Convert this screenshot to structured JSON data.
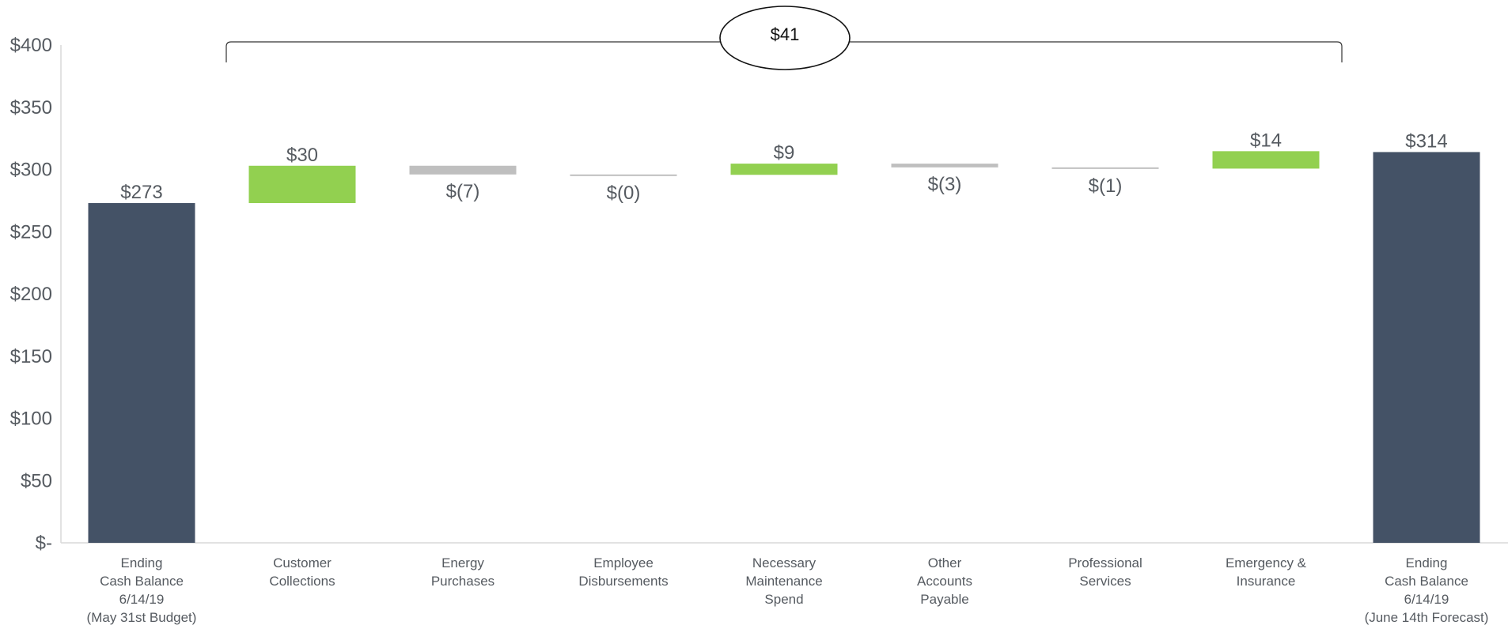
{
  "chart_data": {
    "type": "bar",
    "subtype": "waterfall",
    "categories": [
      [
        "Ending",
        "Cash Balance",
        "6/14/19",
        "(May 31st Budget)"
      ],
      [
        "Customer",
        "Collections"
      ],
      [
        "Energy",
        "Purchases"
      ],
      [
        "Employee",
        "Disbursements"
      ],
      [
        "Necessary",
        "Maintenance",
        "Spend"
      ],
      [
        "Other",
        "Accounts",
        "Payable"
      ],
      [
        "Professional",
        "Services"
      ],
      [
        "Emergency &",
        "Insurance"
      ],
      [
        "Ending",
        "Cash Balance",
        "6/14/19",
        "(June 14th Forecast)"
      ]
    ],
    "values": [
      273,
      30,
      -7,
      -0.3,
      9,
      -3,
      -1,
      14,
      314
    ],
    "kinds": [
      "total",
      "increase",
      "decrease",
      "decrease",
      "increase",
      "decrease",
      "decrease",
      "increase",
      "total"
    ],
    "value_labels": [
      "$273",
      "$30",
      "$(7)",
      "$(0)",
      "$9",
      "$(3)",
      "$(1)",
      "$14",
      "$314"
    ],
    "ylim": [
      0,
      400
    ],
    "yticks": [
      0,
      50,
      100,
      150,
      200,
      250,
      300,
      350,
      400
    ],
    "ytick_labels": [
      "$-",
      "$50",
      "$100",
      "$150",
      "$200",
      "$250",
      "$300",
      "$350",
      "$400"
    ],
    "grid": false,
    "colors": {
      "total": "#445266",
      "increase": "#92d050",
      "decrease": "#bfbfbf",
      "axis": "#d9d9d9",
      "text": "#555a60"
    },
    "callout": {
      "label": "$41",
      "from_category_index": 1,
      "to_category_index": 7
    }
  }
}
